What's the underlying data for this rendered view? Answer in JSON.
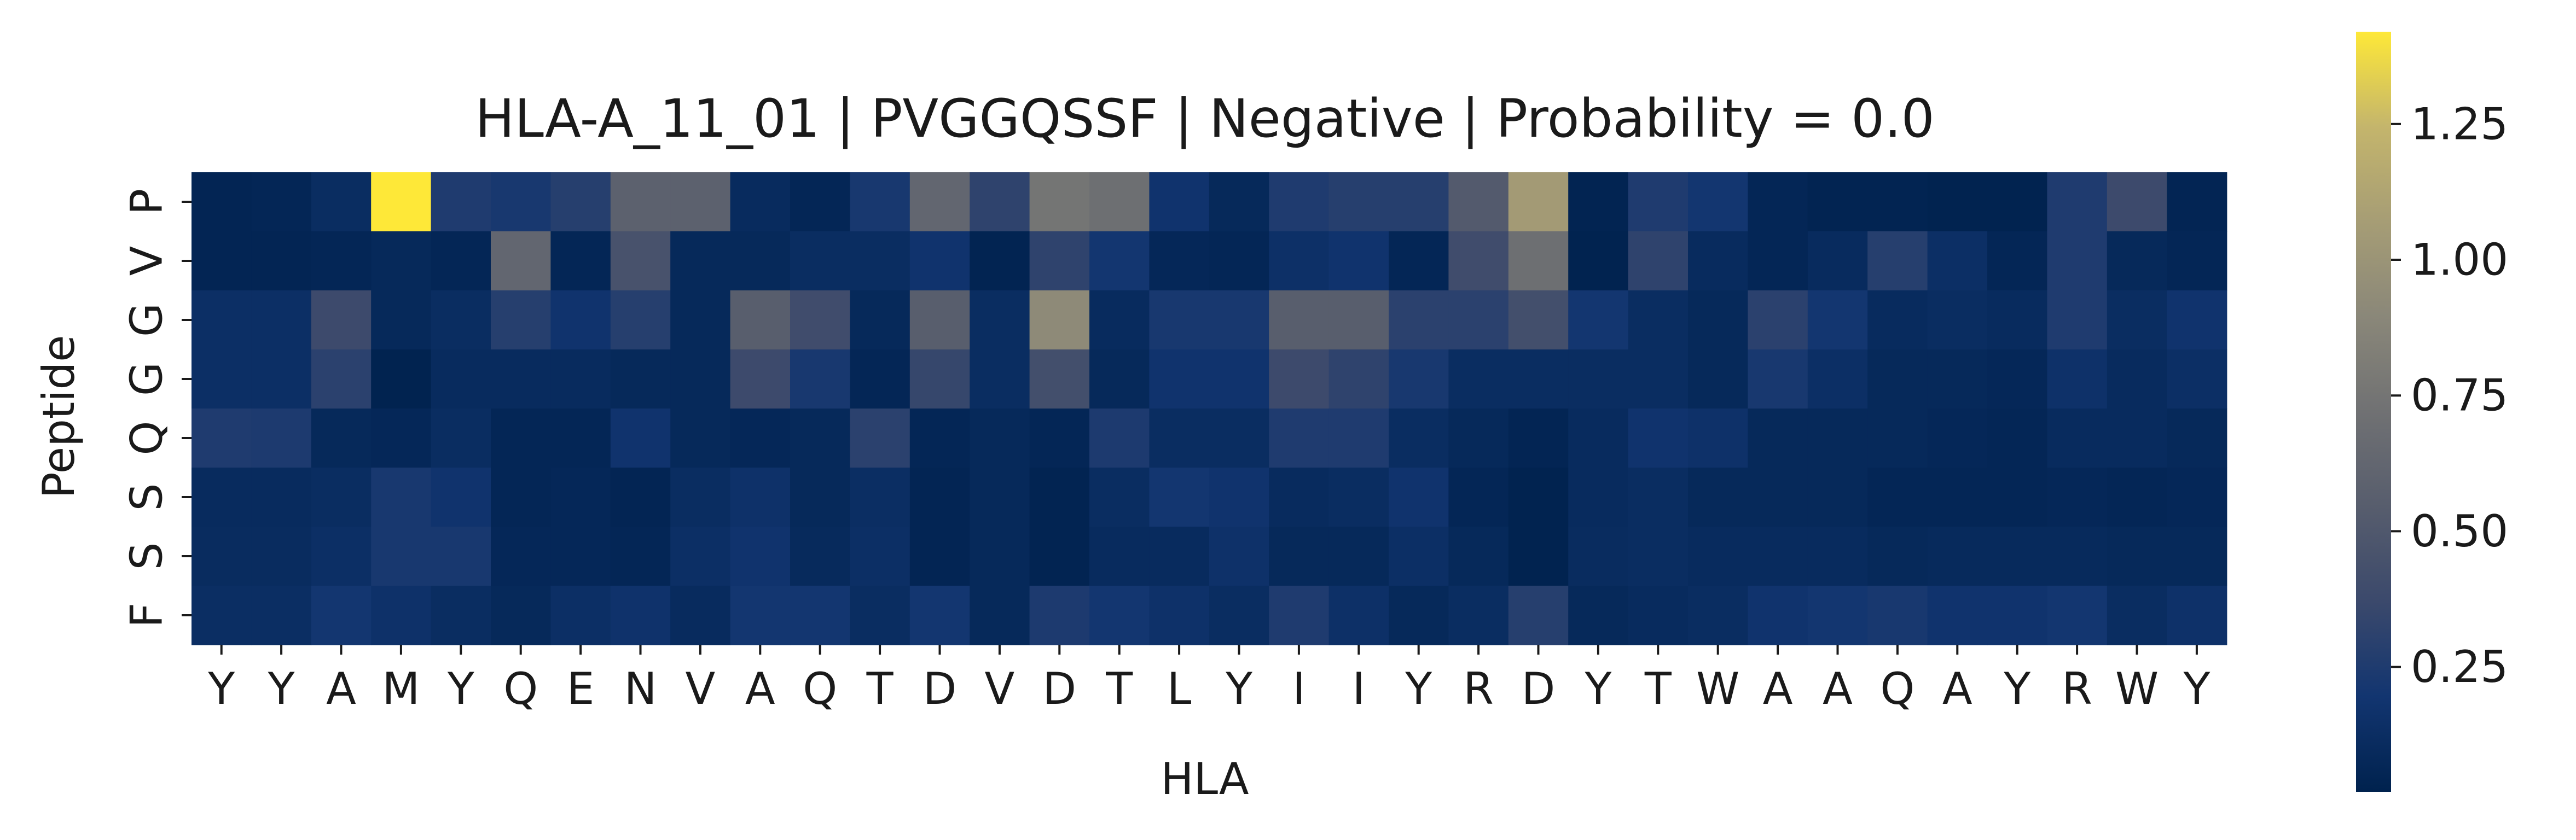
{
  "chart_data": {
    "type": "heatmap",
    "title": "HLA-A_11_01 | PVGGQSSF | Negative | Probability = 0.0",
    "xlabel": "HLA",
    "ylabel": "Peptide",
    "x_labels": [
      "Y",
      "Y",
      "A",
      "M",
      "Y",
      "Q",
      "E",
      "N",
      "V",
      "A",
      "Q",
      "T",
      "D",
      "V",
      "D",
      "T",
      "L",
      "Y",
      "I",
      "I",
      "Y",
      "R",
      "D",
      "Y",
      "T",
      "W",
      "A",
      "A",
      "Q",
      "A",
      "Y",
      "R",
      "W",
      "Y"
    ],
    "y_labels": [
      "P",
      "V",
      "G",
      "G",
      "Q",
      "S",
      "S",
      "F"
    ],
    "colormap": "cividis",
    "colorbar": {
      "min": 0.02,
      "max": 1.42,
      "ticks": [
        0.25,
        0.5,
        0.75,
        1.0,
        1.25
      ],
      "tick_labels": [
        "0.25",
        "0.50",
        "0.75",
        "1.00",
        "1.25"
      ]
    },
    "values": [
      [
        0.05,
        0.06,
        0.12,
        1.42,
        0.25,
        0.22,
        0.28,
        0.58,
        0.58,
        0.1,
        0.06,
        0.22,
        0.62,
        0.32,
        0.75,
        0.7,
        0.18,
        0.08,
        0.25,
        0.28,
        0.28,
        0.52,
        1.05,
        0.04,
        0.25,
        0.2,
        0.06,
        0.04,
        0.04,
        0.03,
        0.03,
        0.25,
        0.38,
        0.05
      ],
      [
        0.05,
        0.05,
        0.06,
        0.08,
        0.06,
        0.62,
        0.06,
        0.45,
        0.08,
        0.08,
        0.12,
        0.12,
        0.18,
        0.04,
        0.32,
        0.2,
        0.07,
        0.06,
        0.15,
        0.18,
        0.06,
        0.4,
        0.7,
        0.03,
        0.32,
        0.1,
        0.06,
        0.1,
        0.28,
        0.14,
        0.06,
        0.25,
        0.08,
        0.06
      ],
      [
        0.14,
        0.14,
        0.38,
        0.08,
        0.12,
        0.28,
        0.18,
        0.28,
        0.08,
        0.55,
        0.4,
        0.08,
        0.55,
        0.12,
        0.92,
        0.1,
        0.22,
        0.22,
        0.55,
        0.55,
        0.3,
        0.3,
        0.42,
        0.2,
        0.12,
        0.08,
        0.3,
        0.2,
        0.1,
        0.12,
        0.1,
        0.25,
        0.12,
        0.18
      ],
      [
        0.14,
        0.14,
        0.3,
        0.03,
        0.1,
        0.1,
        0.1,
        0.08,
        0.08,
        0.38,
        0.22,
        0.06,
        0.35,
        0.12,
        0.42,
        0.08,
        0.18,
        0.18,
        0.38,
        0.32,
        0.22,
        0.12,
        0.12,
        0.12,
        0.12,
        0.08,
        0.22,
        0.14,
        0.08,
        0.08,
        0.07,
        0.16,
        0.1,
        0.14
      ],
      [
        0.25,
        0.24,
        0.08,
        0.07,
        0.12,
        0.06,
        0.06,
        0.18,
        0.08,
        0.07,
        0.08,
        0.3,
        0.06,
        0.08,
        0.06,
        0.24,
        0.12,
        0.12,
        0.25,
        0.25,
        0.12,
        0.08,
        0.05,
        0.1,
        0.18,
        0.16,
        0.08,
        0.08,
        0.08,
        0.07,
        0.06,
        0.1,
        0.1,
        0.08
      ],
      [
        0.1,
        0.1,
        0.12,
        0.22,
        0.18,
        0.06,
        0.07,
        0.05,
        0.12,
        0.16,
        0.08,
        0.13,
        0.05,
        0.08,
        0.04,
        0.12,
        0.2,
        0.18,
        0.1,
        0.12,
        0.18,
        0.06,
        0.03,
        0.1,
        0.12,
        0.08,
        0.08,
        0.08,
        0.06,
        0.06,
        0.06,
        0.07,
        0.06,
        0.07
      ],
      [
        0.11,
        0.11,
        0.14,
        0.22,
        0.22,
        0.07,
        0.07,
        0.06,
        0.14,
        0.18,
        0.09,
        0.14,
        0.05,
        0.08,
        0.04,
        0.1,
        0.1,
        0.16,
        0.08,
        0.08,
        0.14,
        0.08,
        0.03,
        0.11,
        0.12,
        0.1,
        0.1,
        0.1,
        0.08,
        0.09,
        0.09,
        0.09,
        0.08,
        0.08
      ],
      [
        0.13,
        0.13,
        0.2,
        0.16,
        0.12,
        0.08,
        0.14,
        0.17,
        0.1,
        0.2,
        0.2,
        0.12,
        0.2,
        0.08,
        0.24,
        0.2,
        0.16,
        0.12,
        0.25,
        0.15,
        0.08,
        0.12,
        0.28,
        0.08,
        0.1,
        0.12,
        0.18,
        0.2,
        0.22,
        0.18,
        0.18,
        0.2,
        0.12,
        0.16
      ]
    ]
  }
}
